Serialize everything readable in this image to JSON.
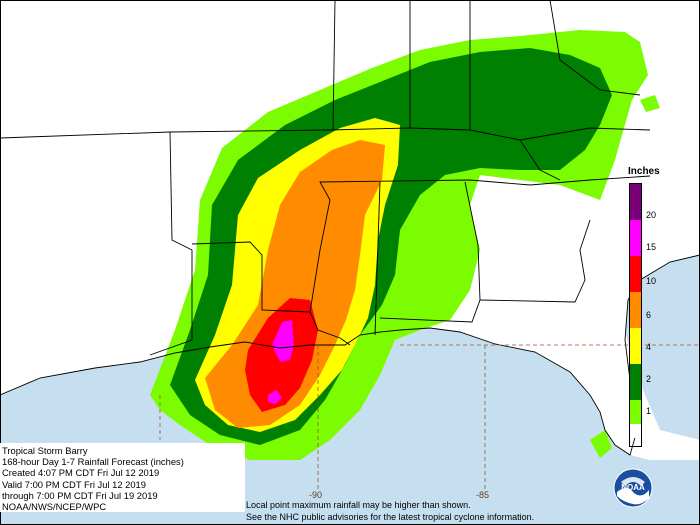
{
  "legend": {
    "title": "Inches",
    "items": [
      {
        "label": "20",
        "color": "#7a007a"
      },
      {
        "label": "15",
        "color": "#ff00ff"
      },
      {
        "label": "10",
        "color": "#ff0000"
      },
      {
        "label": "6",
        "color": "#ff8c00"
      },
      {
        "label": "4",
        "color": "#ffff00"
      },
      {
        "label": "2",
        "color": "#008000"
      },
      {
        "label": "1",
        "color": "#7cfc00"
      }
    ],
    "unshaded_color": "#ffffff"
  },
  "info": {
    "storm": "Tropical Storm Barry",
    "product": "168-hour Day 1-7 Rainfall Forecast (inches)",
    "created": "Created 4:07 PM CDT Fri Jul 12 2019",
    "valid": "Valid 7:00 PM CDT Fri Jul 12 2019",
    "through": "through 7:00 PM CDT Fri Jul 19 2019",
    "agency": "NOAA/NWS/NCEP/WPC"
  },
  "notes": {
    "line1": "Local point maximum rainfall may be higher than shown.",
    "line2": "See the NHC public advisories for the latest tropical cyclone information."
  },
  "longitudes": [
    "-90",
    "-85"
  ],
  "colors": {
    "water": "#c6dff0",
    "land": "#ffffff",
    "borders": "#000000",
    "gridlines": "#a0522d"
  },
  "logo": {
    "text": "NOAA"
  }
}
